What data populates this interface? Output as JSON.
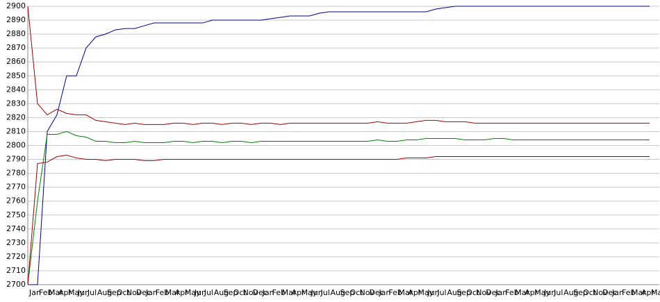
{
  "chart_data": {
    "type": "line",
    "categories": [
      "Jan",
      "Feb",
      "Mar",
      "Apr",
      "May",
      "Jun",
      "Jul",
      "Aug",
      "Sep",
      "Oct",
      "Nov",
      "Dec",
      "Jan",
      "Feb",
      "Mar",
      "Apr",
      "May",
      "Jun",
      "Jul",
      "Aug",
      "Sep",
      "Oct",
      "Nov",
      "Dec",
      "Jan",
      "Feb",
      "Mar",
      "Apr",
      "May",
      "Jun",
      "Jul",
      "Aug",
      "Sep",
      "Oct",
      "Nov",
      "Dec",
      "Jan",
      "Feb",
      "Mar",
      "Apr",
      "May",
      "Jun",
      "Jul",
      "Aug",
      "Sep",
      "Oct",
      "Nov",
      "Dec",
      "Jan",
      "Feb",
      "Mar",
      "Apr",
      "May",
      "Jun",
      "Jul",
      "Aug",
      "Sep",
      "Oct",
      "Nov",
      "Dec",
      "Jan",
      "Feb",
      "Mar",
      "Apr",
      "May"
    ],
    "series": [
      {
        "color": "#00008b",
        "values": [
          2700,
          2700,
          2810,
          2822,
          2850,
          2850,
          2870,
          2878,
          2880,
          2883,
          2884,
          2884,
          2886,
          2888,
          2888,
          2888,
          2888,
          2888,
          2888,
          2890,
          2890,
          2890,
          2890,
          2890,
          2890,
          2891,
          2892,
          2893,
          2893,
          2893,
          2895,
          2896,
          2896,
          2896,
          2896,
          2896,
          2896,
          2896,
          2896,
          2896,
          2896,
          2896,
          2898,
          2899,
          2900,
          2900,
          2900,
          2900,
          2900,
          2900,
          2900,
          2900,
          2900,
          2900,
          2900,
          2900,
          2900,
          2900,
          2900,
          2900,
          2900,
          2900,
          2900,
          2900,
          2900
        ]
      },
      {
        "color": "#a00000",
        "values": [
          2900,
          2830,
          2822,
          2826,
          2823,
          2822,
          2822,
          2818,
          2817,
          2816,
          2815,
          2816,
          2815,
          2815,
          2815,
          2816,
          2816,
          2815,
          2816,
          2816,
          2815,
          2816,
          2816,
          2815,
          2816,
          2816,
          2815,
          2816,
          2816,
          2816,
          2816,
          2816,
          2816,
          2816,
          2816,
          2816,
          2817,
          2816,
          2816,
          2816,
          2817,
          2818,
          2818,
          2817,
          2817,
          2817,
          2816,
          2816,
          2816,
          2816,
          2816,
          2816,
          2816,
          2816,
          2816,
          2816,
          2816,
          2816,
          2816,
          2816,
          2816,
          2816,
          2816,
          2816,
          2816
        ]
      },
      {
        "color": "#008000",
        "values": [
          2700,
          2760,
          2808,
          2808,
          2810,
          2807,
          2806,
          2803,
          2803,
          2802,
          2802,
          2803,
          2802,
          2802,
          2802,
          2803,
          2803,
          2802,
          2803,
          2803,
          2802,
          2803,
          2803,
          2802,
          2803,
          2803,
          2803,
          2803,
          2803,
          2803,
          2803,
          2803,
          2803,
          2803,
          2803,
          2803,
          2804,
          2803,
          2803,
          2804,
          2804,
          2805,
          2805,
          2805,
          2805,
          2804,
          2804,
          2804,
          2805,
          2805,
          2804,
          2804,
          2804,
          2804,
          2804,
          2804,
          2804,
          2804,
          2804,
          2804,
          2804,
          2804,
          2804,
          2804,
          2804
        ]
      },
      {
        "color": "#a00000",
        "values": [
          2700,
          2787,
          2788,
          2792,
          2793,
          2791,
          2790,
          2790,
          2789,
          2790,
          2790,
          2790,
          2789,
          2789,
          2790,
          2790,
          2790,
          2790,
          2790,
          2790,
          2790,
          2790,
          2790,
          2790,
          2790,
          2790,
          2790,
          2790,
          2790,
          2790,
          2790,
          2790,
          2790,
          2790,
          2790,
          2790,
          2790,
          2790,
          2790,
          2791,
          2791,
          2791,
          2792,
          2792,
          2792,
          2792,
          2792,
          2792,
          2792,
          2792,
          2792,
          2792,
          2792,
          2792,
          2792,
          2792,
          2792,
          2792,
          2792,
          2792,
          2792,
          2792,
          2792,
          2792,
          2792
        ]
      }
    ],
    "ylim": [
      2700,
      2900
    ],
    "yticks": [
      2700,
      2710,
      2720,
      2730,
      2740,
      2750,
      2760,
      2770,
      2780,
      2790,
      2800,
      2810,
      2820,
      2830,
      2840,
      2850,
      2860,
      2870,
      2880,
      2890,
      2900
    ],
    "grid": true
  }
}
